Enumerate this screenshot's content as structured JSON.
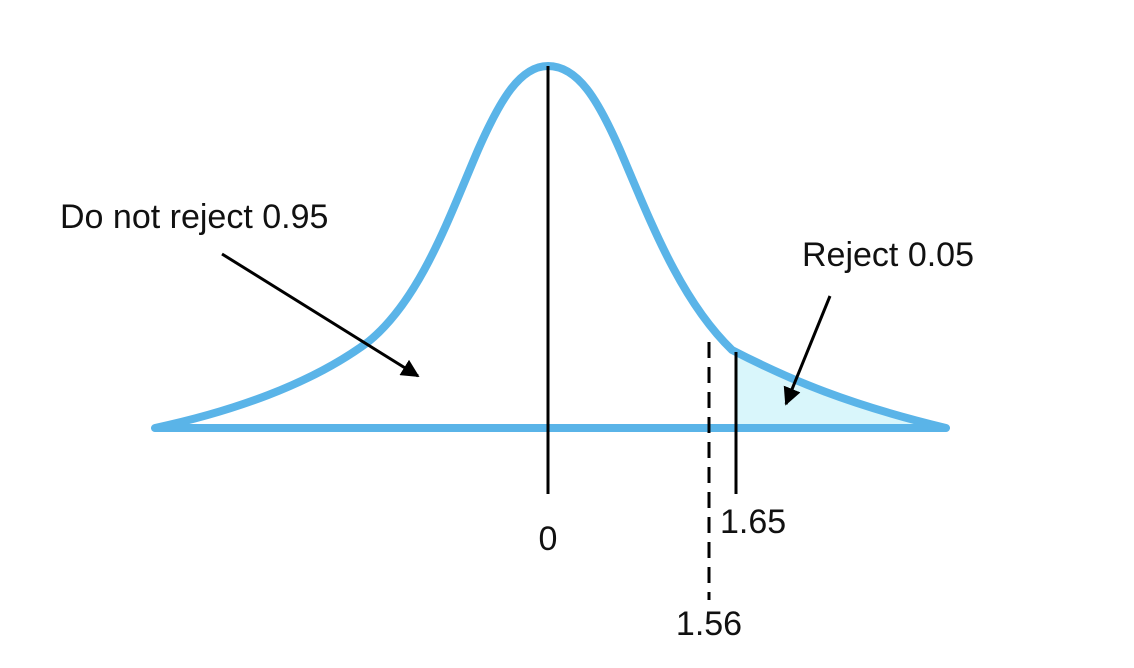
{
  "annotations": {
    "do_not_reject": "Do not reject 0.95",
    "reject": "Reject 0.05"
  },
  "ticks": {
    "center": "0",
    "critical": "1.65",
    "test_statistic": "1.56"
  },
  "colors": {
    "curve": "#5ab4e8",
    "reject_fill": "#d9f6fb",
    "lines": "#000000"
  }
}
